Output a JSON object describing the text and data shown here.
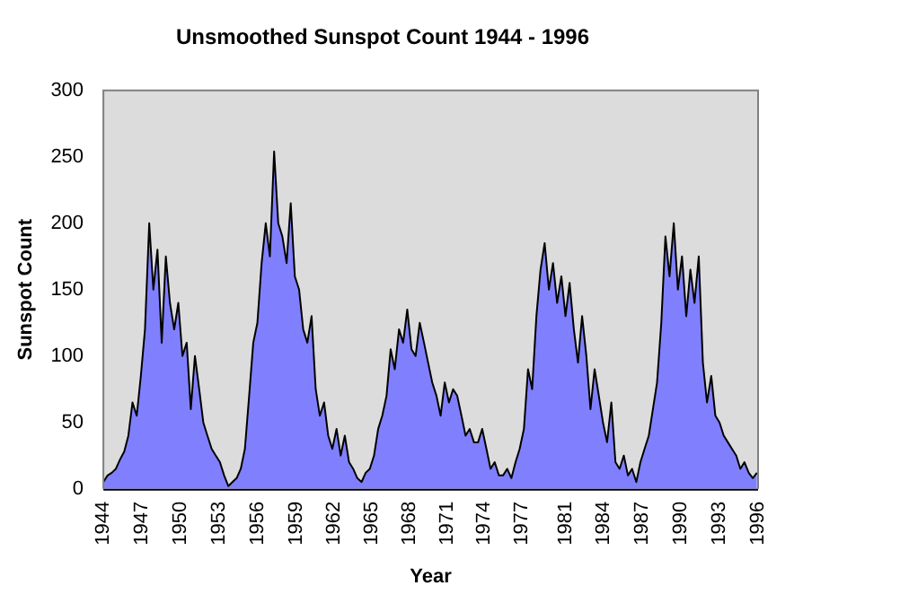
{
  "chart_data": {
    "type": "area",
    "title": "Unsmoothed Sunspot Count 1944 - 1996",
    "xlabel": "Year",
    "ylabel": "Sunspot Count",
    "x": [
      1944,
      1944.33,
      1944.67,
      1945,
      1945.33,
      1945.67,
      1946,
      1946.33,
      1946.67,
      1947,
      1947.33,
      1947.67,
      1948,
      1948.33,
      1948.67,
      1949,
      1949.33,
      1949.67,
      1950,
      1950.33,
      1950.67,
      1951,
      1951.33,
      1951.67,
      1952,
      1952.33,
      1952.67,
      1953,
      1953.33,
      1953.67,
      1954,
      1954.33,
      1954.67,
      1955,
      1955.33,
      1955.67,
      1956,
      1956.33,
      1956.67,
      1957,
      1957.33,
      1957.67,
      1958,
      1958.33,
      1958.67,
      1959,
      1959.33,
      1959.67,
      1960,
      1960.33,
      1960.67,
      1961,
      1961.33,
      1961.67,
      1962,
      1962.33,
      1962.67,
      1963,
      1963.33,
      1963.67,
      1964,
      1964.33,
      1964.67,
      1965,
      1965.33,
      1965.67,
      1966,
      1966.33,
      1966.67,
      1967,
      1967.33,
      1967.67,
      1968,
      1968.33,
      1968.67,
      1969,
      1969.33,
      1969.67,
      1970,
      1970.33,
      1970.67,
      1971,
      1971.33,
      1971.67,
      1972,
      1972.33,
      1972.67,
      1973,
      1973.33,
      1973.67,
      1974,
      1974.33,
      1974.67,
      1975,
      1975.33,
      1975.67,
      1976,
      1976.33,
      1976.67,
      1977,
      1977.33,
      1977.67,
      1978,
      1978.33,
      1978.67,
      1979,
      1979.33,
      1979.67,
      1980,
      1980.33,
      1980.67,
      1981,
      1981.33,
      1981.67,
      1982,
      1982.33,
      1982.67,
      1983,
      1983.33,
      1983.67,
      1984,
      1984.33,
      1984.67,
      1985,
      1985.33,
      1985.67,
      1986,
      1986.33,
      1986.67,
      1987,
      1987.33,
      1987.67,
      1988,
      1988.33,
      1988.67,
      1989,
      1989.33,
      1989.67,
      1990,
      1990.33,
      1990.67,
      1991,
      1991.33,
      1991.67,
      1992,
      1992.33,
      1992.67,
      1993,
      1993.33,
      1993.67,
      1994,
      1994.33,
      1994.67,
      1995,
      1995.33,
      1995.67,
      1996,
      1996.33
    ],
    "series": [
      {
        "color": "#8080ff",
        "values": [
          5,
          10,
          12,
          15,
          22,
          28,
          40,
          65,
          55,
          85,
          120,
          200,
          150,
          180,
          110,
          175,
          140,
          120,
          140,
          100,
          110,
          60,
          100,
          75,
          50,
          40,
          30,
          25,
          20,
          10,
          2,
          5,
          8,
          15,
          30,
          70,
          110,
          125,
          170,
          200,
          175,
          254,
          200,
          190,
          170,
          215,
          160,
          150,
          120,
          110,
          130,
          75,
          55,
          65,
          40,
          30,
          45,
          25,
          40,
          20,
          15,
          8,
          5,
          12,
          15,
          25,
          45,
          55,
          70,
          105,
          90,
          120,
          110,
          135,
          105,
          100,
          125,
          110,
          95,
          80,
          70,
          55,
          80,
          65,
          75,
          70,
          55,
          40,
          45,
          35,
          35,
          45,
          30,
          15,
          20,
          10,
          10,
          15,
          8,
          20,
          30,
          45,
          90,
          75,
          130,
          165,
          185,
          150,
          170,
          140,
          160,
          130,
          155,
          120,
          95,
          130,
          100,
          60,
          90,
          70,
          50,
          35,
          65,
          20,
          15,
          25,
          10,
          15,
          5,
          20,
          30,
          40,
          60,
          80,
          125,
          190,
          160,
          200,
          150,
          175,
          130,
          165,
          140,
          175,
          95,
          65,
          85,
          55,
          50,
          40,
          35,
          30,
          25,
          15,
          20,
          12,
          8,
          12
        ]
      }
    ],
    "xlim": [
      1944,
      1996.42
    ],
    "xticks": [
      {
        "value": 1944,
        "label": "1944"
      },
      {
        "value": 1947.08,
        "label": "1947"
      },
      {
        "value": 1950.17,
        "label": "1950"
      },
      {
        "value": 1953.25,
        "label": "1953"
      },
      {
        "value": 1956.33,
        "label": "1956"
      },
      {
        "value": 1959.42,
        "label": "1959"
      },
      {
        "value": 1962.5,
        "label": "1962"
      },
      {
        "value": 1965.5,
        "label": "1965"
      },
      {
        "value": 1968.5,
        "label": "1968"
      },
      {
        "value": 1971.5,
        "label": "1971"
      },
      {
        "value": 1974.5,
        "label": "1974"
      },
      {
        "value": 1977.5,
        "label": "1977"
      },
      {
        "value": 1981,
        "label": "1981"
      },
      {
        "value": 1984.08,
        "label": "1984"
      },
      {
        "value": 1987.17,
        "label": "1987"
      },
      {
        "value": 1990.25,
        "label": "1990"
      },
      {
        "value": 1993.33,
        "label": "1993"
      },
      {
        "value": 1996.42,
        "label": "1996"
      }
    ],
    "ylim": [
      0,
      300
    ],
    "yticks": [
      0,
      50,
      100,
      150,
      200,
      250,
      300
    ],
    "grid": false,
    "legend": false
  }
}
